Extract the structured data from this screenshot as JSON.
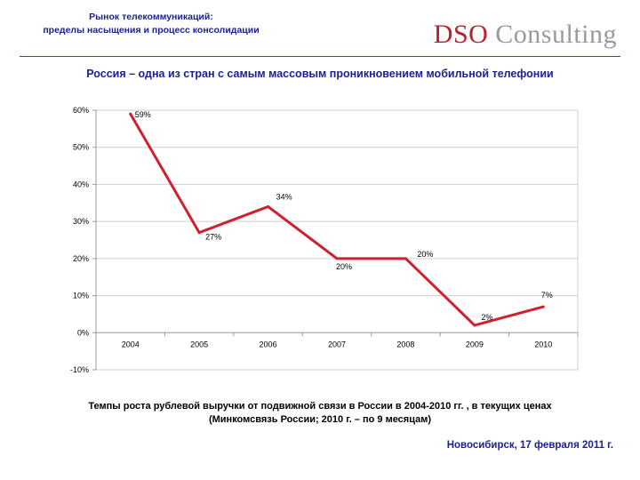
{
  "header": {
    "title_line1": "Рынок телекоммуникаций:",
    "title_line2": "пределы насыщения и процесс консолидации",
    "logo_primary": "DSO",
    "logo_secondary": "Consulting"
  },
  "slide": {
    "title": "Россия – одна из стран с самым массовым проникновением мобильной телефонии"
  },
  "chart_data": {
    "type": "line",
    "title": "",
    "xlabel": "",
    "ylabel": "",
    "ylim": [
      -10,
      60
    ],
    "y_ticks": [
      60,
      50,
      40,
      30,
      20,
      10,
      0,
      -10
    ],
    "y_tick_labels": [
      "60%",
      "50%",
      "40%",
      "30%",
      "20%",
      "10%",
      "0%",
      "-10%"
    ],
    "categories": [
      "2004",
      "2005",
      "2006",
      "2007",
      "2008",
      "2009",
      "2010"
    ],
    "series": [
      {
        "name": "Темпы роста рублевой выручки",
        "color": "#d0202e",
        "values": [
          59,
          27,
          34,
          20,
          20,
          2,
          7
        ],
        "data_labels": [
          "59%",
          "27%",
          "34%",
          "20%",
          "20%",
          "2%",
          "7%"
        ]
      }
    ],
    "grid": true,
    "legend": "none"
  },
  "caption": {
    "line1": "Темпы роста рублевой выручки от подвижной связи в России в 2004-2010 гг. , в текущих ценах",
    "line2": "(Минкомсвязь России; 2010 г. – по 9 месяцам)"
  },
  "footer": {
    "text": "Новосибирск, 17 февраля 2011 г."
  },
  "colors": {
    "accent": "#b5222b",
    "title_blue": "#1b1f8f",
    "line": "#d0202e"
  }
}
